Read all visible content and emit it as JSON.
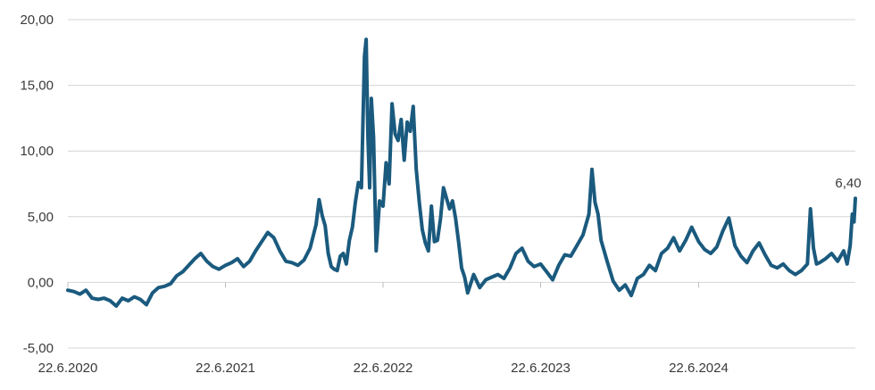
{
  "chart_data": {
    "type": "line",
    "title": "",
    "xlabel": "",
    "ylabel": "",
    "ylim": [
      -5,
      20
    ],
    "grid": true,
    "y_ticks": [
      "-5,00",
      "0,00",
      "5,00",
      "10,00",
      "15,00",
      "20,00"
    ],
    "y_tick_values": [
      -5,
      0,
      5,
      10,
      15,
      20
    ],
    "x_tick_labels": [
      "22.6.2020",
      "22.6.2021",
      "22.6.2022",
      "22.6.2023",
      "22.6.2024"
    ],
    "x_tick_dates": [
      "2020-06-22",
      "2021-06-22",
      "2022-06-22",
      "2023-06-22",
      "2024-06-22"
    ],
    "x_range": [
      "2020-06-22",
      "2025-06-20"
    ],
    "end_label": "6,40",
    "line_color": "#1a5a7e",
    "series": [
      {
        "points": [
          [
            "2020-06-22",
            -0.6
          ],
          [
            "2020-07-06",
            -0.7
          ],
          [
            "2020-07-20",
            -0.9
          ],
          [
            "2020-08-03",
            -0.6
          ],
          [
            "2020-08-17",
            -1.2
          ],
          [
            "2020-08-31",
            -1.3
          ],
          [
            "2020-09-14",
            -1.2
          ],
          [
            "2020-09-28",
            -1.4
          ],
          [
            "2020-10-12",
            -1.8
          ],
          [
            "2020-10-26",
            -1.2
          ],
          [
            "2020-11-09",
            -1.4
          ],
          [
            "2020-11-23",
            -1.1
          ],
          [
            "2020-12-07",
            -1.3
          ],
          [
            "2020-12-21",
            -1.7
          ],
          [
            "2021-01-04",
            -0.8
          ],
          [
            "2021-01-18",
            -0.4
          ],
          [
            "2021-02-01",
            -0.3
          ],
          [
            "2021-02-15",
            -0.1
          ],
          [
            "2021-03-01",
            0.5
          ],
          [
            "2021-03-15",
            0.8
          ],
          [
            "2021-03-29",
            1.3
          ],
          [
            "2021-04-12",
            1.8
          ],
          [
            "2021-04-26",
            2.2
          ],
          [
            "2021-05-10",
            1.6
          ],
          [
            "2021-05-24",
            1.2
          ],
          [
            "2021-06-07",
            1.0
          ],
          [
            "2021-06-22",
            1.3
          ],
          [
            "2021-07-06",
            1.5
          ],
          [
            "2021-07-20",
            1.8
          ],
          [
            "2021-08-03",
            1.2
          ],
          [
            "2021-08-17",
            1.6
          ],
          [
            "2021-08-31",
            2.4
          ],
          [
            "2021-09-14",
            3.1
          ],
          [
            "2021-09-28",
            3.8
          ],
          [
            "2021-10-12",
            3.4
          ],
          [
            "2021-10-26",
            2.4
          ],
          [
            "2021-11-09",
            1.6
          ],
          [
            "2021-11-23",
            1.5
          ],
          [
            "2021-12-07",
            1.3
          ],
          [
            "2021-12-21",
            1.7
          ],
          [
            "2022-01-04",
            2.6
          ],
          [
            "2022-01-18",
            4.4
          ],
          [
            "2022-01-25",
            6.3
          ],
          [
            "2022-02-01",
            5.1
          ],
          [
            "2022-02-08",
            4.3
          ],
          [
            "2022-02-15",
            2.2
          ],
          [
            "2022-02-22",
            1.2
          ],
          [
            "2022-03-01",
            1.0
          ],
          [
            "2022-03-08",
            0.9
          ],
          [
            "2022-03-15",
            2.0
          ],
          [
            "2022-03-22",
            2.2
          ],
          [
            "2022-03-29",
            1.4
          ],
          [
            "2022-04-05",
            3.2
          ],
          [
            "2022-04-12",
            4.2
          ],
          [
            "2022-04-19",
            6.1
          ],
          [
            "2022-04-26",
            7.6
          ],
          [
            "2022-05-03",
            7.2
          ],
          [
            "2022-05-10",
            17.2
          ],
          [
            "2022-05-14",
            18.5
          ],
          [
            "2022-05-18",
            11.0
          ],
          [
            "2022-05-22",
            7.2
          ],
          [
            "2022-05-26",
            14.0
          ],
          [
            "2022-05-31",
            11.0
          ],
          [
            "2022-06-06",
            2.4
          ],
          [
            "2022-06-14",
            6.2
          ],
          [
            "2022-06-22",
            5.8
          ],
          [
            "2022-06-29",
            9.1
          ],
          [
            "2022-07-06",
            7.5
          ],
          [
            "2022-07-13",
            13.6
          ],
          [
            "2022-07-20",
            11.3
          ],
          [
            "2022-07-27",
            10.8
          ],
          [
            "2022-08-03",
            12.4
          ],
          [
            "2022-08-10",
            9.3
          ],
          [
            "2022-08-17",
            12.2
          ],
          [
            "2022-08-24",
            11.5
          ],
          [
            "2022-08-31",
            13.4
          ],
          [
            "2022-09-07",
            8.6
          ],
          [
            "2022-09-14",
            6.1
          ],
          [
            "2022-09-21",
            4.0
          ],
          [
            "2022-09-28",
            3.0
          ],
          [
            "2022-10-05",
            2.4
          ],
          [
            "2022-10-12",
            5.8
          ],
          [
            "2022-10-19",
            3.1
          ],
          [
            "2022-10-26",
            3.2
          ],
          [
            "2022-11-02",
            4.8
          ],
          [
            "2022-11-09",
            7.2
          ],
          [
            "2022-11-16",
            6.4
          ],
          [
            "2022-11-23",
            5.6
          ],
          [
            "2022-11-30",
            6.2
          ],
          [
            "2022-12-07",
            4.9
          ],
          [
            "2022-12-14",
            3.1
          ],
          [
            "2022-12-21",
            1.1
          ],
          [
            "2022-12-28",
            0.4
          ],
          [
            "2023-01-04",
            -0.8
          ],
          [
            "2023-01-18",
            0.6
          ],
          [
            "2023-02-01",
            -0.4
          ],
          [
            "2023-02-15",
            0.2
          ],
          [
            "2023-03-01",
            0.4
          ],
          [
            "2023-03-15",
            0.6
          ],
          [
            "2023-03-29",
            0.3
          ],
          [
            "2023-04-12",
            1.1
          ],
          [
            "2023-04-26",
            2.2
          ],
          [
            "2023-05-10",
            2.6
          ],
          [
            "2023-05-24",
            1.6
          ],
          [
            "2023-06-07",
            1.2
          ],
          [
            "2023-06-22",
            1.4
          ],
          [
            "2023-07-06",
            0.8
          ],
          [
            "2023-07-20",
            0.2
          ],
          [
            "2023-08-03",
            1.3
          ],
          [
            "2023-08-17",
            2.1
          ],
          [
            "2023-08-31",
            2.0
          ],
          [
            "2023-09-14",
            2.8
          ],
          [
            "2023-09-28",
            3.6
          ],
          [
            "2023-10-12",
            5.2
          ],
          [
            "2023-10-19",
            8.6
          ],
          [
            "2023-10-26",
            6.1
          ],
          [
            "2023-11-02",
            5.2
          ],
          [
            "2023-11-09",
            3.2
          ],
          [
            "2023-11-23",
            1.6
          ],
          [
            "2023-12-07",
            0.1
          ],
          [
            "2023-12-21",
            -0.6
          ],
          [
            "2024-01-04",
            -0.2
          ],
          [
            "2024-01-18",
            -1.0
          ],
          [
            "2024-02-01",
            0.3
          ],
          [
            "2024-02-15",
            0.6
          ],
          [
            "2024-02-29",
            1.3
          ],
          [
            "2024-03-14",
            0.9
          ],
          [
            "2024-03-28",
            2.2
          ],
          [
            "2024-04-11",
            2.6
          ],
          [
            "2024-04-25",
            3.4
          ],
          [
            "2024-05-09",
            2.4
          ],
          [
            "2024-05-23",
            3.2
          ],
          [
            "2024-06-06",
            4.2
          ],
          [
            "2024-06-22",
            3.1
          ],
          [
            "2024-07-06",
            2.5
          ],
          [
            "2024-07-20",
            2.2
          ],
          [
            "2024-08-03",
            2.7
          ],
          [
            "2024-08-17",
            3.9
          ],
          [
            "2024-08-31",
            4.9
          ],
          [
            "2024-09-14",
            2.8
          ],
          [
            "2024-09-28",
            2.0
          ],
          [
            "2024-10-12",
            1.5
          ],
          [
            "2024-10-26",
            2.4
          ],
          [
            "2024-11-09",
            3.0
          ],
          [
            "2024-11-23",
            2.1
          ],
          [
            "2024-12-07",
            1.3
          ],
          [
            "2024-12-21",
            1.1
          ],
          [
            "2025-01-04",
            1.4
          ],
          [
            "2025-01-18",
            0.9
          ],
          [
            "2025-02-01",
            0.6
          ],
          [
            "2025-02-15",
            0.9
          ],
          [
            "2025-03-01",
            1.4
          ],
          [
            "2025-03-08",
            5.6
          ],
          [
            "2025-03-15",
            2.6
          ],
          [
            "2025-03-22",
            1.4
          ],
          [
            "2025-03-29",
            1.5
          ],
          [
            "2025-04-12",
            1.8
          ],
          [
            "2025-04-26",
            2.2
          ],
          [
            "2025-05-10",
            1.6
          ],
          [
            "2025-05-24",
            2.4
          ],
          [
            "2025-06-01",
            1.4
          ],
          [
            "2025-06-08",
            2.8
          ],
          [
            "2025-06-13",
            5.2
          ],
          [
            "2025-06-17",
            4.6
          ],
          [
            "2025-06-20",
            6.4
          ]
        ]
      }
    ]
  }
}
